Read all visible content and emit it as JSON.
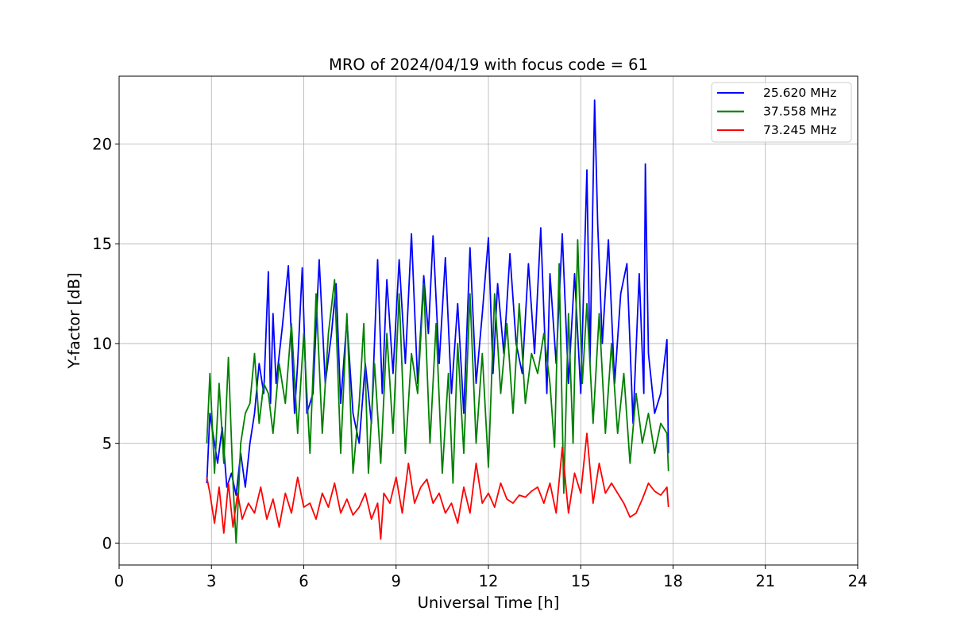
{
  "chart_data": {
    "type": "line",
    "title": "MRO of 2024/04/19 with focus code = 61",
    "xlabel": "Universal Time [h]",
    "ylabel": "Y-factor [dB]",
    "xlim": [
      0,
      24
    ],
    "ylim": [
      -1.1,
      23.4
    ],
    "xticks": [
      0,
      3,
      6,
      9,
      12,
      15,
      18,
      21,
      24
    ],
    "yticks": [
      0,
      5,
      10,
      15,
      20
    ],
    "grid": true,
    "legend_position": "top-right",
    "series": [
      {
        "name": "25.620 MHz",
        "color": "#0000ff",
        "x": [
          2.85,
          2.95,
          3.05,
          3.2,
          3.35,
          3.5,
          3.65,
          3.8,
          3.95,
          4.1,
          4.25,
          4.4,
          4.55,
          4.7,
          4.85,
          4.92,
          5.0,
          5.1,
          5.3,
          5.5,
          5.7,
          5.8,
          5.95,
          6.1,
          6.3,
          6.5,
          6.7,
          6.9,
          7.05,
          7.2,
          7.4,
          7.6,
          7.8,
          8.0,
          8.2,
          8.4,
          8.55,
          8.7,
          8.9,
          9.1,
          9.3,
          9.5,
          9.7,
          9.9,
          10.05,
          10.2,
          10.4,
          10.6,
          10.8,
          11.0,
          11.2,
          11.4,
          11.6,
          11.8,
          12.0,
          12.15,
          12.3,
          12.5,
          12.7,
          12.9,
          13.1,
          13.3,
          13.5,
          13.7,
          13.9,
          14.0,
          14.2,
          14.4,
          14.6,
          14.8,
          15.0,
          15.2,
          15.3,
          15.45,
          15.55,
          15.7,
          15.9,
          16.1,
          16.3,
          16.5,
          16.7,
          16.9,
          17.05,
          17.1,
          17.2,
          17.4,
          17.6,
          17.8,
          17.85
        ],
        "y": [
          3.0,
          6.5,
          5.5,
          4.0,
          5.8,
          2.8,
          3.5,
          2.4,
          4.5,
          2.8,
          5.0,
          6.5,
          9.0,
          7.5,
          13.6,
          7.0,
          11.5,
          8.0,
          10.8,
          13.9,
          6.5,
          9.0,
          13.8,
          6.5,
          7.5,
          14.2,
          8.0,
          10.5,
          13.0,
          7.0,
          11.2,
          6.5,
          5.0,
          9.0,
          6.0,
          14.2,
          7.5,
          13.2,
          8.5,
          14.2,
          9.0,
          15.5,
          8.0,
          13.4,
          10.5,
          15.4,
          9.0,
          14.3,
          7.5,
          12.0,
          6.5,
          14.8,
          8.0,
          11.5,
          15.3,
          8.5,
          13.0,
          9.5,
          14.5,
          10.0,
          8.5,
          14.0,
          9.5,
          15.8,
          7.5,
          13.5,
          9.0,
          15.5,
          8.0,
          13.5,
          7.5,
          18.7,
          9.0,
          22.2,
          16.0,
          10.0,
          15.2,
          8.0,
          12.5,
          14.0,
          6.0,
          13.5,
          7.5,
          19.0,
          9.5,
          6.5,
          7.5,
          10.2,
          4.5
        ]
      },
      {
        "name": "37.558 MHz",
        "color": "#008000",
        "x": [
          2.85,
          2.95,
          3.1,
          3.25,
          3.4,
          3.55,
          3.7,
          3.8,
          3.85,
          3.95,
          4.1,
          4.25,
          4.4,
          4.55,
          4.7,
          4.85,
          5.0,
          5.2,
          5.4,
          5.6,
          5.8,
          6.0,
          6.2,
          6.4,
          6.6,
          6.8,
          7.0,
          7.2,
          7.4,
          7.6,
          7.8,
          7.95,
          8.1,
          8.3,
          8.5,
          8.7,
          8.9,
          9.1,
          9.3,
          9.5,
          9.7,
          9.9,
          10.1,
          10.3,
          10.5,
          10.7,
          10.85,
          11.0,
          11.2,
          11.4,
          11.6,
          11.8,
          12.0,
          12.2,
          12.4,
          12.6,
          12.8,
          13.0,
          13.2,
          13.4,
          13.6,
          13.8,
          14.0,
          14.15,
          14.3,
          14.45,
          14.6,
          14.75,
          14.9,
          15.05,
          15.2,
          15.4,
          15.6,
          15.8,
          16.0,
          16.2,
          16.4,
          16.6,
          16.8,
          17.0,
          17.2,
          17.4,
          17.6,
          17.8,
          17.85
        ],
        "y": [
          5.0,
          8.5,
          3.5,
          8.0,
          4.0,
          9.3,
          3.0,
          0.0,
          1.5,
          5.0,
          6.5,
          7.0,
          9.5,
          6.0,
          8.0,
          7.5,
          5.5,
          9.0,
          7.0,
          11.0,
          5.5,
          10.5,
          4.5,
          12.5,
          5.5,
          10.5,
          13.2,
          4.5,
          11.5,
          3.5,
          7.0,
          11.0,
          3.5,
          9.0,
          4.0,
          10.5,
          5.5,
          12.5,
          4.5,
          9.5,
          7.5,
          13.0,
          5.0,
          11.0,
          3.5,
          8.5,
          3.0,
          10.0,
          4.5,
          12.5,
          5.0,
          9.5,
          3.8,
          12.5,
          7.5,
          11.0,
          6.5,
          12.0,
          7.0,
          9.5,
          8.5,
          10.5,
          8.0,
          4.8,
          14.0,
          2.5,
          11.5,
          5.0,
          15.2,
          8.0,
          12.0,
          6.0,
          11.5,
          5.5,
          10.0,
          5.5,
          8.5,
          4.0,
          7.5,
          5.0,
          6.5,
          4.5,
          6.0,
          5.5,
          3.6
        ]
      },
      {
        "name": "73.245 MHz",
        "color": "#ff0000",
        "x": [
          2.85,
          2.95,
          3.1,
          3.25,
          3.4,
          3.55,
          3.7,
          3.85,
          4.0,
          4.2,
          4.4,
          4.6,
          4.8,
          5.0,
          5.2,
          5.4,
          5.6,
          5.8,
          6.0,
          6.2,
          6.4,
          6.6,
          6.8,
          7.0,
          7.2,
          7.4,
          7.6,
          7.8,
          8.0,
          8.2,
          8.4,
          8.5,
          8.6,
          8.8,
          9.0,
          9.2,
          9.4,
          9.6,
          9.8,
          10.0,
          10.2,
          10.4,
          10.6,
          10.8,
          11.0,
          11.2,
          11.4,
          11.6,
          11.8,
          12.0,
          12.2,
          12.4,
          12.6,
          12.8,
          13.0,
          13.2,
          13.4,
          13.6,
          13.8,
          14.0,
          14.2,
          14.4,
          14.6,
          14.8,
          15.0,
          15.2,
          15.4,
          15.6,
          15.8,
          16.0,
          16.2,
          16.4,
          16.6,
          16.8,
          17.0,
          17.2,
          17.4,
          17.6,
          17.8,
          17.85
        ],
        "y": [
          3.3,
          2.5,
          1.0,
          2.8,
          0.5,
          3.0,
          0.8,
          2.5,
          1.2,
          2.0,
          1.5,
          2.8,
          1.2,
          2.2,
          0.8,
          2.5,
          1.5,
          3.3,
          1.8,
          2.0,
          1.2,
          2.5,
          1.8,
          3.0,
          1.5,
          2.2,
          1.4,
          1.8,
          2.5,
          1.2,
          2.0,
          0.2,
          2.5,
          2.0,
          3.3,
          1.5,
          4.0,
          2.0,
          2.8,
          3.2,
          2.0,
          2.5,
          1.5,
          2.0,
          1.0,
          2.8,
          1.5,
          4.0,
          2.0,
          2.5,
          1.8,
          3.0,
          2.2,
          2.0,
          2.4,
          2.3,
          2.6,
          2.8,
          2.0,
          3.0,
          1.5,
          4.8,
          1.5,
          3.5,
          2.5,
          5.5,
          2.0,
          4.0,
          2.5,
          3.0,
          2.5,
          2.0,
          1.3,
          1.5,
          2.2,
          3.0,
          2.6,
          2.4,
          2.8,
          1.8
        ]
      }
    ]
  }
}
